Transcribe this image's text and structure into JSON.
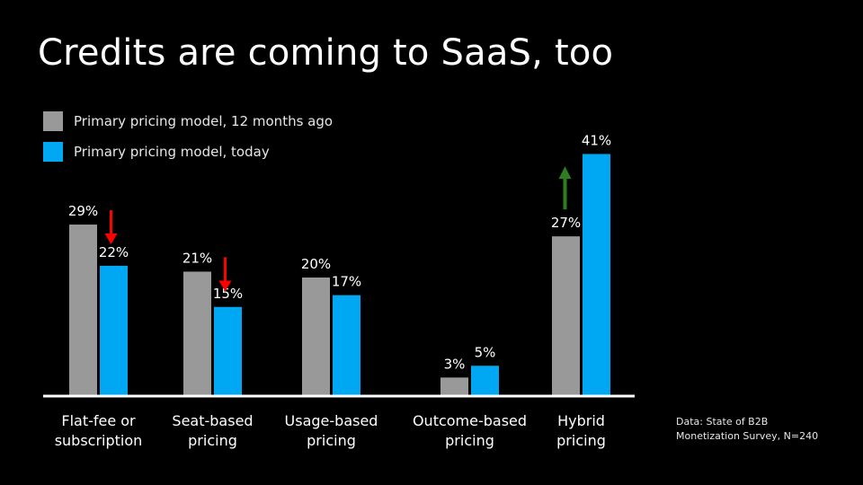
{
  "title": "Credits are coming to SaaS, too",
  "source": [
    "Data: State of B2B",
    "Monetization Survey, N=240"
  ],
  "colors": {
    "background": "#000000",
    "previous": "#999999",
    "today": "#00a8f3",
    "down_arrow": "#ff0000",
    "up_arrow": "#2e7d1f",
    "baseline": "#ffffff"
  },
  "chart_data": {
    "type": "bar",
    "categories": [
      [
        "Flat-fee or",
        "subscription"
      ],
      [
        "Seat-based",
        "pricing"
      ],
      [
        "Usage-based",
        "pricing"
      ],
      [
        "Outcome-based",
        "pricing"
      ],
      [
        "Hybrid",
        "pricing"
      ]
    ],
    "series": [
      {
        "name": "Primary pricing model, 12 months ago",
        "values": [
          29,
          21,
          20,
          3,
          27
        ],
        "labels": [
          "29%",
          "21%",
          "20%",
          "3%",
          "27%"
        ]
      },
      {
        "name": "Primary pricing model, today",
        "values": [
          22,
          15,
          17,
          5,
          41
        ],
        "labels": [
          "22%",
          "15%",
          "17%",
          "5%",
          "41%"
        ]
      }
    ],
    "trend_arrows": [
      "down",
      "down",
      "none",
      "none",
      "up"
    ],
    "ylim": [
      0,
      45
    ],
    "legend": "top-left",
    "grid": false
  }
}
